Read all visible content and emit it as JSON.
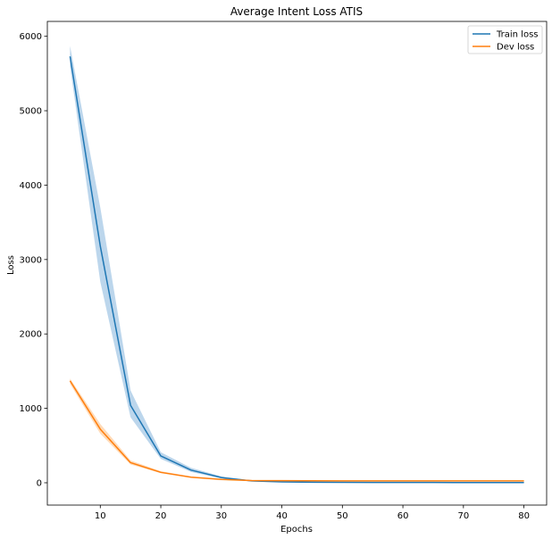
{
  "chart_data": {
    "type": "line",
    "title": "Average Intent Loss ATIS",
    "xlabel": "Epochs",
    "ylabel": "Loss",
    "xlim": [
      1.25,
      83.75
    ],
    "ylim": [
      -300,
      6200
    ],
    "xticks": [
      10,
      20,
      30,
      40,
      50,
      60,
      70,
      80
    ],
    "yticks": [
      0,
      1000,
      2000,
      3000,
      4000,
      5000,
      6000
    ],
    "grid": false,
    "legend_position": "top-right",
    "x": [
      5,
      10,
      15,
      20,
      25,
      30,
      35,
      40,
      45,
      50,
      55,
      60,
      65,
      70,
      75,
      80
    ],
    "series": [
      {
        "name": "Train loss",
        "color": "#1f77b4",
        "band_color": "#a6c8e6",
        "values": [
          5730,
          3180,
          1040,
          360,
          170,
          70,
          25,
          12,
          8,
          6,
          5,
          4,
          4,
          3,
          3,
          3
        ],
        "lower": [
          5600,
          2700,
          880,
          320,
          145,
          58,
          18,
          8,
          5,
          4,
          3,
          3,
          2,
          2,
          2,
          2
        ],
        "upper": [
          5870,
          3700,
          1240,
          410,
          200,
          85,
          32,
          16,
          11,
          8,
          7,
          6,
          5,
          5,
          4,
          4
        ]
      },
      {
        "name": "Dev loss",
        "color": "#ff7f0e",
        "band_color": "#ffcfa0",
        "values": [
          1370,
          720,
          270,
          140,
          75,
          45,
          30,
          28,
          27,
          26,
          26,
          26,
          26,
          26,
          26,
          26
        ],
        "lower": [
          1330,
          660,
          245,
          128,
          68,
          40,
          26,
          24,
          23,
          22,
          22,
          22,
          22,
          22,
          22,
          22
        ],
        "upper": [
          1400,
          790,
          300,
          155,
          84,
          52,
          35,
          33,
          32,
          31,
          31,
          31,
          31,
          31,
          31,
          31
        ]
      }
    ]
  }
}
